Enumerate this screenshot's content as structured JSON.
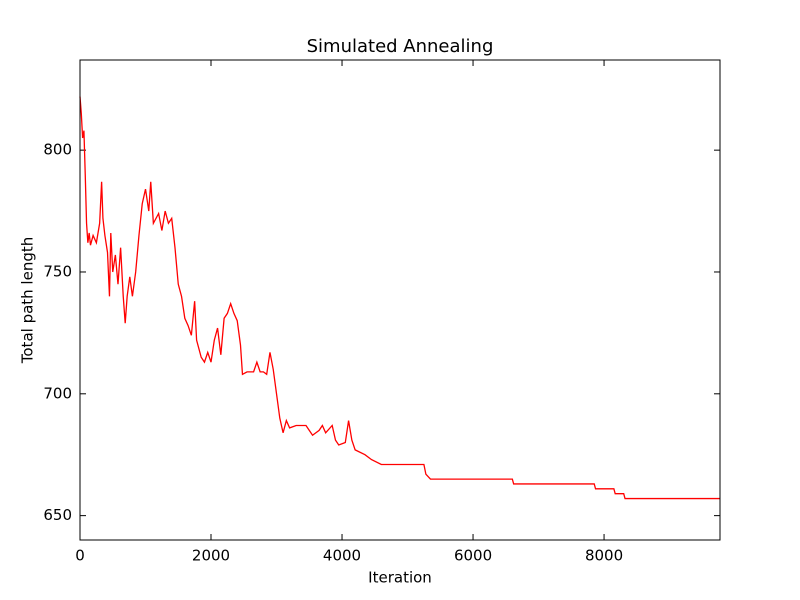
{
  "chart_data": {
    "type": "line",
    "title": "Simulated Annealing",
    "x_label": "Iteration",
    "y_label": "Total path length",
    "x": [
      0,
      20,
      40,
      60,
      80,
      100,
      120,
      140,
      160,
      200,
      250,
      300,
      330,
      350,
      380,
      420,
      450,
      470,
      500,
      540,
      580,
      620,
      660,
      690,
      720,
      760,
      800,
      850,
      900,
      950,
      1000,
      1050,
      1080,
      1120,
      1200,
      1250,
      1300,
      1350,
      1400,
      1450,
      1500,
      1550,
      1600,
      1650,
      1700,
      1750,
      1780,
      1850,
      1900,
      1950,
      2000,
      2050,
      2100,
      2150,
      2200,
      2250,
      2300,
      2350,
      2400,
      2450,
      2480,
      2550,
      2650,
      2700,
      2750,
      2800,
      2850,
      2900,
      2950,
      3000,
      3050,
      3100,
      3150,
      3200,
      3300,
      3450,
      3500,
      3550,
      3650,
      3700,
      3750,
      3850,
      3900,
      3950,
      4050,
      4100,
      4150,
      4200,
      4350,
      4450,
      4600,
      5250,
      5280,
      5350,
      6600,
      6620,
      7850,
      7870,
      8150,
      8170,
      8300,
      8320,
      9770
    ],
    "series": [
      {
        "name": "Total path length",
        "color": "#ff0000",
        "values": [
          822,
          815,
          805,
          808,
          790,
          770,
          762,
          766,
          761,
          765,
          762,
          770,
          787,
          772,
          765,
          758,
          740,
          766,
          750,
          757,
          745,
          760,
          740,
          729,
          740,
          748,
          740,
          750,
          765,
          778,
          784,
          775,
          787,
          770,
          774,
          767,
          775,
          770,
          772,
          760,
          745,
          740,
          731,
          728,
          724,
          738,
          722,
          715,
          713,
          717,
          713,
          722,
          727,
          716,
          731,
          733,
          737,
          733,
          730,
          720,
          708,
          709,
          709,
          713,
          709,
          709,
          708,
          717,
          710,
          700,
          690,
          684,
          689,
          686,
          687,
          687,
          685,
          683,
          685,
          687,
          684,
          687,
          681,
          679,
          680,
          689,
          681,
          677,
          675,
          673,
          671,
          671,
          667,
          665,
          665,
          663,
          663,
          661,
          661,
          659,
          659,
          657,
          657
        ]
      }
    ],
    "xlim": [
      0,
      9770
    ],
    "ylim": [
      640,
      837
    ],
    "xticks": [
      0,
      2000,
      4000,
      6000,
      8000
    ],
    "yticks": [
      650,
      700,
      750,
      800
    ],
    "grid": false
  }
}
